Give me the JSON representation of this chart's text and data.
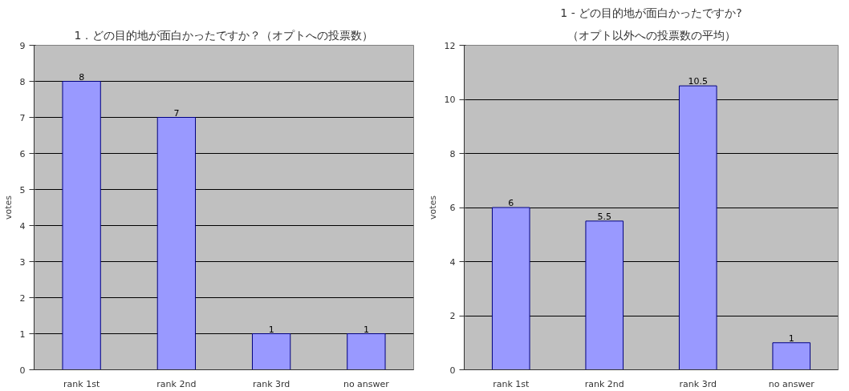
{
  "chart_data": [
    {
      "type": "bar",
      "title": "1．どの目的地が面白かったですか？（オプトへの投票数）",
      "ylabel": "votes",
      "categories": [
        "rank 1st",
        "rank 2nd",
        "rank 3rd",
        "no answer"
      ],
      "values": [
        8,
        7,
        1,
        1
      ],
      "color": "#9999ff",
      "ylim": [
        0,
        9
      ],
      "yticks": [
        0,
        1,
        2,
        3,
        4,
        5,
        6,
        7,
        8,
        9
      ],
      "grid": "y",
      "data_labels": true
    },
    {
      "type": "bar",
      "title": "1 - どの目的地が面白かったですか?",
      "subtitle": "（オプト以外への投票数の平均）",
      "ylabel": "votes",
      "categories": [
        "rank 1st",
        "rank 2nd",
        "rank 3rd",
        "no answer"
      ],
      "values": [
        6,
        5.5,
        10.5,
        1
      ],
      "color": "#9999ff",
      "ylim": [
        0,
        12
      ],
      "yticks": [
        0,
        2,
        4,
        6,
        8,
        10,
        12
      ],
      "grid": "y",
      "data_labels": true
    }
  ]
}
